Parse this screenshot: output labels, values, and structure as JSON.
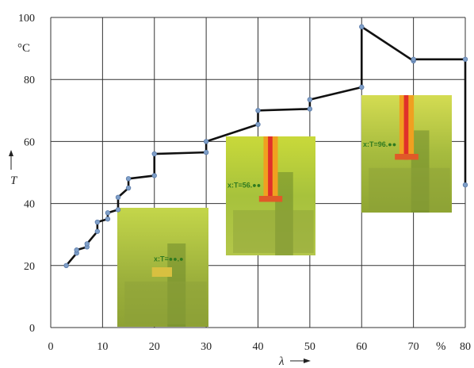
{
  "chart_data": {
    "type": "line",
    "xlabel": "λ",
    "ylabel": "T",
    "y_unit": "°C",
    "x_unit": "%",
    "xlim": [
      0,
      80
    ],
    "ylim": [
      0,
      100
    ],
    "x_ticks": [
      0,
      10,
      20,
      30,
      40,
      50,
      60,
      70,
      80
    ],
    "y_ticks": [
      0,
      20,
      40,
      60,
      80,
      100
    ],
    "grid": true,
    "series": [
      {
        "x": [
          3,
          5,
          5,
          7,
          7,
          9,
          9,
          11,
          11,
          13,
          13,
          15,
          15,
          20,
          20,
          30,
          30,
          40,
          40,
          50,
          50,
          60,
          60,
          70,
          70,
          80,
          80
        ],
        "y": [
          20,
          24,
          25,
          26,
          27,
          31,
          34,
          35,
          37,
          38,
          42,
          45,
          48,
          49,
          56,
          56.5,
          60,
          65.5,
          70,
          70.5,
          73.5,
          77.5,
          97,
          86,
          86.5,
          86.5,
          46
        ]
      }
    ],
    "annotations": [
      {
        "x": 20.5,
        "y": 56,
        "text": "x:T=56.●●",
        "color_scheme": "mid"
      },
      {
        "x": 12,
        "y": 20,
        "text": "x:T=●●.●",
        "color_scheme": "low"
      },
      {
        "x": 60,
        "y": 97,
        "text": "x:T=96.●●",
        "color_scheme": "high"
      }
    ]
  },
  "colors": {
    "line": "#111111",
    "marker": "#7f9fc8",
    "grid": "#333333"
  }
}
